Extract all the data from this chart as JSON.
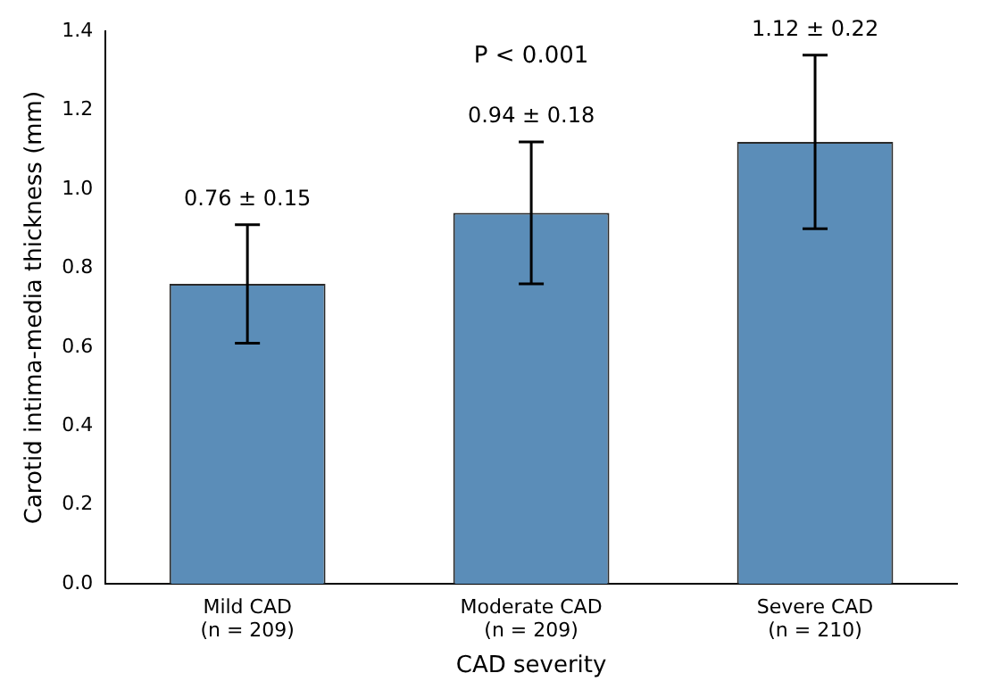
{
  "chart_data": {
    "type": "bar",
    "xlabel": "CAD severity",
    "ylabel": "Carotid intima-media thickness (mm)",
    "categories": [
      "Mild CAD\n(n = 209)",
      "Moderate CAD\n(n = 209)",
      "Severe CAD\n(n = 210)"
    ],
    "values": [
      0.76,
      0.94,
      1.12
    ],
    "errors": [
      0.15,
      0.18,
      0.22
    ],
    "color": "#5b8db8",
    "annotations": [
      "0.76 ± 0.15",
      "0.94 ± 0.18",
      "1.12 ± 0.22",
      "P < 0.001"
    ],
    "ylim": [
      0,
      1.4
    ],
    "yticks": [
      {
        "value": 0,
        "label": "0.0"
      },
      {
        "value": 0.2,
        "label": "0.2"
      },
      {
        "value": 0.4,
        "label": "0.4"
      },
      {
        "value": 0.6,
        "label": "0.6"
      },
      {
        "value": 0.8,
        "label": "0.8"
      },
      {
        "value": 1.0,
        "label": "1.0"
      },
      {
        "value": 1.2,
        "label": "1.2"
      },
      {
        "value": 1.4,
        "label": "1.4"
      }
    ],
    "grid": false,
    "legend": false
  }
}
